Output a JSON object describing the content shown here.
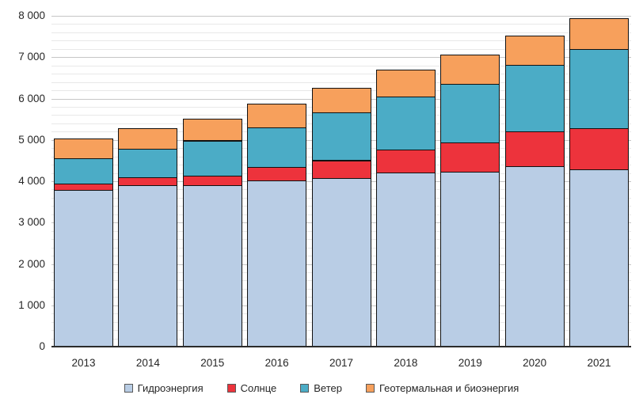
{
  "chart_data": {
    "type": "bar",
    "stacked": true,
    "title": "",
    "xlabel": "",
    "ylabel": "",
    "categories": [
      "2013",
      "2014",
      "2015",
      "2016",
      "2017",
      "2018",
      "2019",
      "2020",
      "2021"
    ],
    "series": [
      {
        "name": "Гидроэнергия",
        "color": "#B9CDE5",
        "values": [
          3790,
          3895,
          3900,
          4020,
          4085,
          4210,
          4230,
          4355,
          4290
        ]
      },
      {
        "name": "Солнце",
        "color": "#ED333C",
        "values": [
          150,
          195,
          240,
          330,
          430,
          565,
          705,
          850,
          1000
        ]
      },
      {
        "name": "Ветер",
        "color": "#4BACC6",
        "values": [
          620,
          700,
          850,
          955,
          1155,
          1280,
          1425,
          1610,
          1905
        ]
      },
      {
        "name": "Геотермальная и биоэнергия",
        "color": "#F7A05C",
        "values": [
          480,
          505,
          525,
          565,
          590,
          645,
          700,
          715,
          755
        ]
      }
    ],
    "totals": [
      5040,
      5295,
      5515,
      5870,
      6260,
      6700,
      7060,
      7530,
      7950
    ],
    "ylim": [
      0,
      8000
    ],
    "y_major_step": 1000,
    "y_minor_step": 200,
    "y_tick_labels": [
      "0",
      "1 000",
      "2 000",
      "3 000",
      "4 000",
      "5 000",
      "6 000",
      "7 000",
      "8 000"
    ],
    "grid": true,
    "legend_position": "bottom",
    "colors": {
      "grid_minor": "#e8e8e8",
      "grid_major": "#c6c6c6",
      "axis_line": "#2b2b2b",
      "text": "#262626",
      "segment_border": "#111111"
    }
  }
}
